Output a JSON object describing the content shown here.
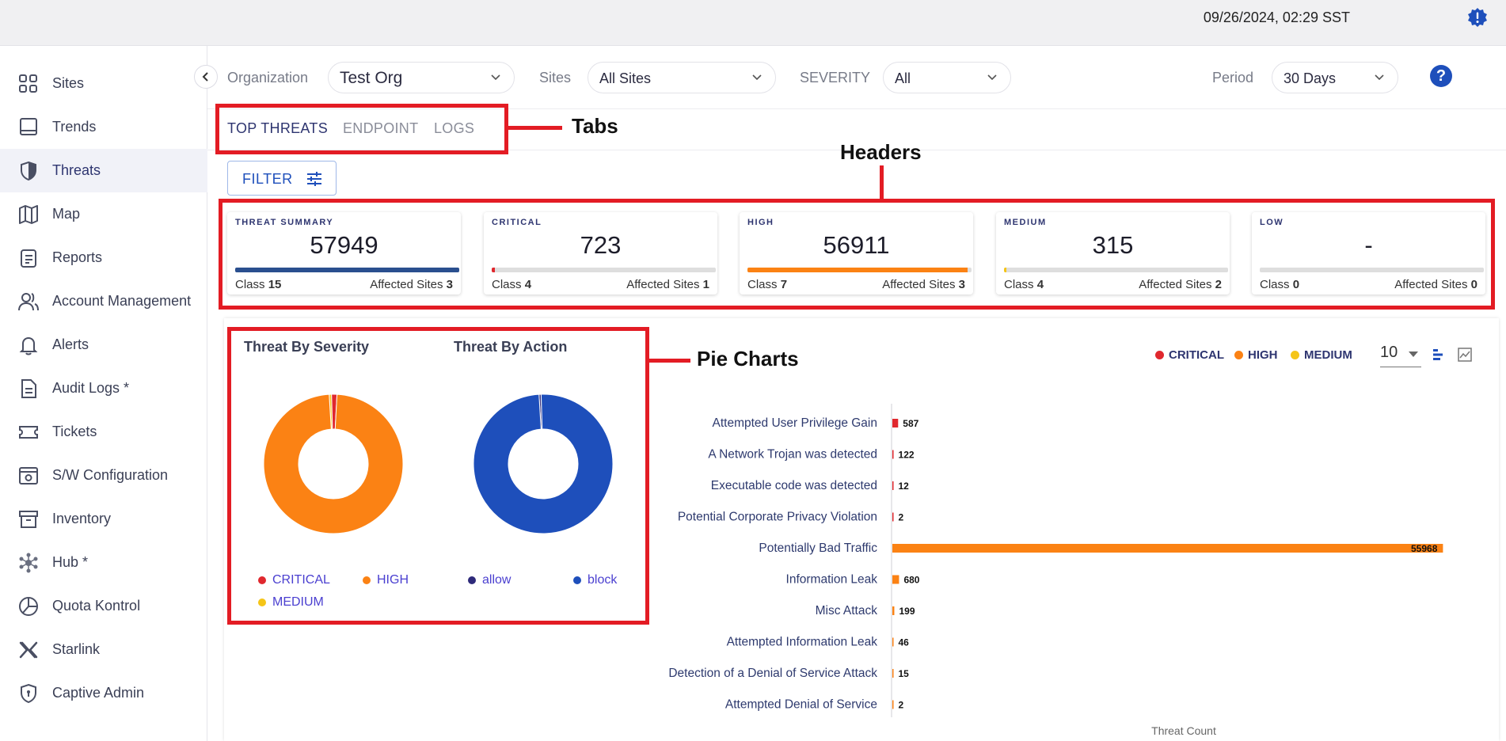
{
  "topbar": {
    "datetime": "09/26/2024, 02:29 SST",
    "notify_icon": "alert-badge-icon"
  },
  "sidebar": {
    "items": [
      {
        "label": "Sites",
        "icon": "grid-icon"
      },
      {
        "label": "Trends",
        "icon": "monitor-icon"
      },
      {
        "label": "Threats",
        "icon": "shield-icon",
        "active": true
      },
      {
        "label": "Map",
        "icon": "map-icon"
      },
      {
        "label": "Reports",
        "icon": "clipboard-icon"
      },
      {
        "label": "Account Management",
        "icon": "users-icon"
      },
      {
        "label": "Alerts",
        "icon": "bell-icon"
      },
      {
        "label": "Audit Logs *",
        "icon": "document-icon"
      },
      {
        "label": "Tickets",
        "icon": "ticket-icon"
      },
      {
        "label": "S/W Configuration",
        "icon": "config-icon"
      },
      {
        "label": "Inventory",
        "icon": "archive-icon"
      },
      {
        "label": "Hub *",
        "icon": "hub-icon"
      },
      {
        "label": "Quota Kontrol",
        "icon": "pie-icon"
      },
      {
        "label": "Starlink",
        "icon": "starlink-icon"
      },
      {
        "label": "Captive Admin",
        "icon": "shield-lock-icon"
      }
    ]
  },
  "filters": {
    "organization_label": "Organization",
    "organization_value": "Test Org",
    "sites_label": "Sites",
    "sites_value": "All Sites",
    "severity_label": "SEVERITY",
    "severity_value": "All",
    "period_label": "Period",
    "period_value": "30 Days",
    "help_glyph": "?"
  },
  "tabs": [
    {
      "label": "TOP THREATS",
      "active": true
    },
    {
      "label": "ENDPOINT"
    },
    {
      "label": "LOGS"
    }
  ],
  "filter_button": {
    "label": "FILTER"
  },
  "cards": [
    {
      "title": "THREAT SUMMARY",
      "value": "57949",
      "class_label": "Class",
      "class_count": "15",
      "affected_label": "Affected Sites",
      "affected_count": "3",
      "bar_color": "#2a4f8f",
      "bar_fraction": 1.0
    },
    {
      "title": "CRITICAL",
      "value": "723",
      "class_label": "Class",
      "class_count": "4",
      "affected_label": "Affected Sites",
      "affected_count": "1",
      "bar_color": "#e0282e",
      "bar_fraction": 0.0125
    },
    {
      "title": "HIGH",
      "value": "56911",
      "class_label": "Class",
      "class_count": "7",
      "affected_label": "Affected Sites",
      "affected_count": "3",
      "bar_color": "#fb8214",
      "bar_fraction": 0.982
    },
    {
      "title": "MEDIUM",
      "value": "315",
      "class_label": "Class",
      "class_count": "4",
      "affected_label": "Affected Sites",
      "affected_count": "2",
      "bar_color": "#f5c518",
      "bar_fraction": 0.0054
    },
    {
      "title": "LOW",
      "value": "-",
      "class_label": "Class",
      "class_count": "0",
      "affected_label": "Affected Sites",
      "affected_count": "0",
      "bar_color": "#dedede",
      "bar_fraction": 0
    }
  ],
  "pies": {
    "severity": {
      "title": "Threat By Severity",
      "legend": [
        {
          "label": "CRITICAL",
          "color": "#e0282e"
        },
        {
          "label": "HIGH",
          "color": "#fb8214"
        },
        {
          "label": "MEDIUM",
          "color": "#f5c518"
        }
      ]
    },
    "action": {
      "title": "Threat By Action",
      "legend": [
        {
          "label": "allow",
          "color": "#2e2a7a"
        },
        {
          "label": "block",
          "color": "#1e4fbb"
        }
      ]
    }
  },
  "bar_chart": {
    "legend": [
      {
        "label": "CRITICAL",
        "color": "#e0282e"
      },
      {
        "label": "HIGH",
        "color": "#fb8214"
      },
      {
        "label": "MEDIUM",
        "color": "#f5c518"
      }
    ],
    "top_n": "10",
    "xlabel": "Threat Count"
  },
  "chart_data": [
    {
      "type": "pie",
      "title": "Threat By Severity",
      "labels": [
        "CRITICAL",
        "HIGH",
        "MEDIUM"
      ],
      "values": [
        723,
        56911,
        315
      ],
      "colors": [
        "#e0282e",
        "#fb8214",
        "#f5c518"
      ]
    },
    {
      "type": "pie",
      "title": "Threat By Action",
      "labels": [
        "allow",
        "block"
      ],
      "values": [
        282,
        57667
      ],
      "colors": [
        "#2e2a7a",
        "#1e4fbb"
      ]
    },
    {
      "type": "bar",
      "orientation": "horizontal",
      "xlabel": "Threat Count",
      "categories": [
        "Attempted User Privilege Gain",
        "A Network Trojan was detected",
        "Executable code was detected",
        "Potential Corporate Privacy Violation",
        "Potentially Bad Traffic",
        "Information Leak",
        "Misc Attack",
        "Attempted Information Leak",
        "Detection of a Denial of Service Attack",
        "Attempted Denial of Service"
      ],
      "values": [
        587,
        122,
        12,
        2,
        55968,
        680,
        199,
        46,
        15,
        2
      ],
      "severity": [
        "CRITICAL",
        "CRITICAL",
        "CRITICAL",
        "CRITICAL",
        "HIGH",
        "HIGH",
        "HIGH",
        "HIGH",
        "HIGH",
        "HIGH"
      ]
    }
  ],
  "annotations": {
    "tabs": "Tabs",
    "headers": "Headers",
    "pie_charts": "Pie Charts"
  }
}
